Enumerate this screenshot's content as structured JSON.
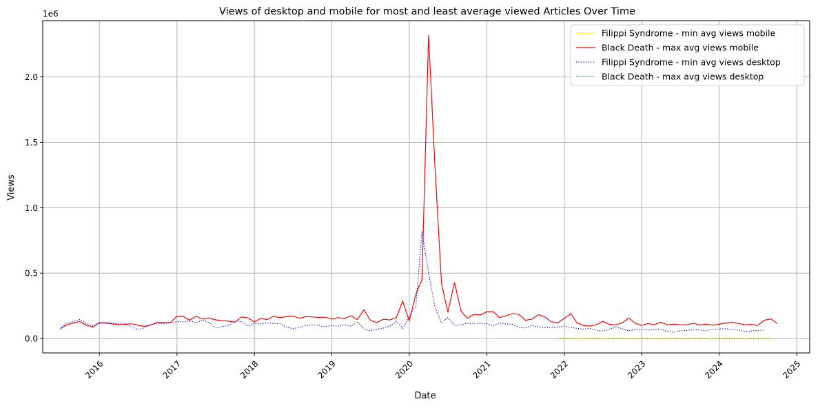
{
  "chart_data": {
    "type": "line",
    "title": "Views of desktop and mobile for most and least average viewed Articles Over Time",
    "xlabel": "Date",
    "ylabel": "Views",
    "y_offset_label": "1e6",
    "x_ticks": [
      "2016",
      "2017",
      "2018",
      "2019",
      "2020",
      "2021",
      "2022",
      "2023",
      "2024",
      "2025"
    ],
    "y_ticks": [
      "0.0",
      "0.5",
      "1.0",
      "1.5",
      "2.0"
    ],
    "y_tick_values": [
      0,
      500000,
      1000000,
      1500000,
      2000000
    ],
    "xlim": [
      "2015-04-09",
      "2025-03-03"
    ],
    "ylim": [
      -110000,
      2430000
    ],
    "grid": true,
    "legend_position": "top-right",
    "series": [
      {
        "name": "Filippi Syndrome - min avg views mobile",
        "color": "#ffff00",
        "style": "solid",
        "start": "2021-12",
        "values": [
          120,
          110,
          130,
          100,
          120,
          140,
          110,
          130,
          150,
          120,
          110,
          100,
          130,
          140,
          120,
          110,
          130,
          150,
          140,
          120,
          110,
          130,
          120,
          140,
          130,
          110,
          120,
          130,
          120,
          140,
          150,
          130,
          120,
          140
        ]
      },
      {
        "name": "Black Death - max avg views mobile",
        "color": "#ff0000",
        "style": "solid",
        "start": "2015-07",
        "values": [
          78000,
          105000,
          118000,
          130000,
          102000,
          88000,
          122000,
          118000,
          112000,
          106000,
          108000,
          113000,
          102000,
          93000,
          103000,
          125000,
          122000,
          123000,
          170000,
          168000,
          140000,
          170000,
          150000,
          158000,
          143000,
          138000,
          133000,
          125000,
          165000,
          158000,
          128000,
          155000,
          145000,
          170000,
          160000,
          168000,
          172000,
          155000,
          168000,
          165000,
          162000,
          163000,
          150000,
          160000,
          152000,
          175000,
          145000,
          220000,
          140000,
          122000,
          148000,
          142000,
          160000,
          285000,
          135000,
          340000,
          450000,
          2320000,
          1320000,
          420000,
          200000,
          430000,
          210000,
          155000,
          185000,
          180000,
          205000,
          205000,
          160000,
          175000,
          190000,
          185000,
          140000,
          148000,
          183000,
          165000,
          128000,
          120000,
          155000,
          190000,
          120000,
          100000,
          95000,
          105000,
          132000,
          108000,
          105000,
          120000,
          157000,
          118000,
          100000,
          115000,
          105000,
          125000,
          105000,
          110000,
          105000,
          105000,
          118000,
          103000,
          110000,
          102000,
          110000,
          118000,
          125000,
          115000,
          105000,
          108000,
          100000,
          140000,
          150000,
          115000
        ]
      },
      {
        "name": "Filippi Syndrome - min avg views desktop",
        "color": "#0000ff",
        "style": "dotted",
        "start": "2015-07",
        "values": [
          72000,
          120000,
          128000,
          145000,
          115000,
          96000,
          115000,
          122000,
          118000,
          115000,
          118000,
          90000,
          68000,
          82000,
          110000,
          115000,
          115000,
          120000,
          130000,
          128000,
          135000,
          120000,
          140000,
          123000,
          85000,
          90000,
          100000,
          135000,
          130000,
          95000,
          115000,
          112000,
          120000,
          115000,
          115000,
          88000,
          75000,
          85000,
          100000,
          105000,
          100000,
          90000,
          100000,
          95000,
          105000,
          95000,
          130000,
          75000,
          60000,
          70000,
          80000,
          95000,
          130000,
          78000,
          165000,
          245000,
          820000,
          500000,
          240000,
          120000,
          160000,
          100000,
          105000,
          118000,
          115000,
          118000,
          115000,
          98000,
          120000,
          112000,
          108000,
          88000,
          80000,
          100000,
          90000,
          85000,
          85000,
          88000,
          95000,
          85000,
          78000,
          72000,
          78000,
          62000,
          58000,
          70000,
          90000,
          75000,
          58000,
          68000,
          72000,
          65000,
          70000,
          72000,
          55000,
          48000,
          60000,
          62000,
          68000,
          65000,
          60000,
          72000,
          72000,
          75000,
          70000,
          65000,
          55000,
          58000,
          62000,
          65000
        ]
      },
      {
        "name": "Black Death - max avg views desktop",
        "color": "#008000",
        "style": "dotted",
        "start": "2021-12",
        "values": [
          200,
          180,
          210,
          190,
          220,
          200,
          210,
          190,
          200,
          230,
          210,
          190,
          200,
          220,
          210,
          200,
          190,
          210,
          220,
          200,
          210,
          190,
          200,
          210,
          220,
          200,
          190,
          210,
          200,
          220,
          210,
          200,
          190,
          210
        ]
      }
    ]
  }
}
